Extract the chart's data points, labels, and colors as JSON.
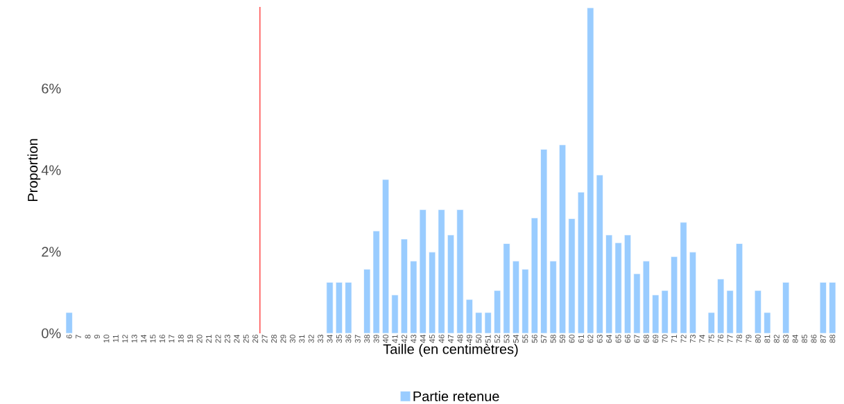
{
  "chart_data": {
    "type": "bar",
    "xlabel": "Taille (en centimètres)",
    "ylabel": "Proportion",
    "x": [
      6,
      7,
      8,
      9,
      10,
      11,
      12,
      13,
      14,
      15,
      16,
      17,
      18,
      19,
      20,
      21,
      22,
      23,
      24,
      25,
      26,
      27,
      28,
      29,
      30,
      31,
      32,
      33,
      34,
      35,
      36,
      37,
      38,
      39,
      40,
      41,
      42,
      43,
      44,
      45,
      46,
      47,
      48,
      49,
      50,
      51,
      52,
      53,
      54,
      55,
      56,
      57,
      58,
      59,
      60,
      61,
      62,
      63,
      64,
      65,
      66,
      67,
      68,
      69,
      70,
      71,
      72,
      73,
      74,
      75,
      76,
      77,
      78,
      79,
      80,
      81,
      82,
      83,
      84,
      85,
      86,
      87,
      88
    ],
    "series": [
      {
        "name": "Partie retenue",
        "color": "#99ccff",
        "values": [
          0.51,
          null,
          null,
          null,
          null,
          null,
          null,
          null,
          null,
          null,
          null,
          null,
          null,
          null,
          null,
          null,
          null,
          null,
          null,
          null,
          null,
          null,
          null,
          null,
          null,
          null,
          null,
          null,
          1.25,
          1.25,
          1.25,
          null,
          1.57,
          2.51,
          3.77,
          0.94,
          2.31,
          1.77,
          3.03,
          1.99,
          3.03,
          2.41,
          3.03,
          0.83,
          0.51,
          0.51,
          1.05,
          2.2,
          1.77,
          1.57,
          2.83,
          4.51,
          1.77,
          4.62,
          2.81,
          3.46,
          7.98,
          3.88,
          2.41,
          2.22,
          2.41,
          1.46,
          1.77,
          0.94,
          1.05,
          1.88,
          2.72,
          1.99,
          null,
          0.51,
          1.33,
          1.05,
          2.2,
          null,
          1.05,
          0.51,
          null,
          1.25,
          null,
          null,
          null,
          1.25,
          1.25
        ]
      }
    ],
    "xlim": [
      5.5,
      88.5
    ],
    "ylim": [
      0,
      8
    ],
    "xticks": [
      6,
      7,
      8,
      9,
      10,
      11,
      12,
      13,
      14,
      15,
      16,
      17,
      18,
      19,
      20,
      21,
      22,
      23,
      24,
      25,
      26,
      27,
      28,
      29,
      30,
      31,
      32,
      33,
      34,
      35,
      36,
      37,
      38,
      39,
      40,
      41,
      42,
      43,
      44,
      45,
      46,
      47,
      48,
      49,
      50,
      51,
      52,
      53,
      54,
      55,
      56,
      57,
      58,
      59,
      60,
      61,
      62,
      63,
      64,
      65,
      66,
      67,
      68,
      69,
      70,
      71,
      72,
      73,
      74,
      75,
      76,
      77,
      78,
      79,
      80,
      81,
      82,
      83,
      84,
      85,
      86,
      87,
      88
    ],
    "yticks": [
      {
        "value": 0,
        "label": "0%"
      },
      {
        "value": 2,
        "label": "2%"
      },
      {
        "value": 4,
        "label": "4%"
      },
      {
        "value": 6,
        "label": "6%"
      }
    ],
    "ref_lines": [
      {
        "axis": "x",
        "value": 26.5,
        "color": "#ff0000"
      }
    ],
    "grid": false,
    "legend": "bottom"
  }
}
